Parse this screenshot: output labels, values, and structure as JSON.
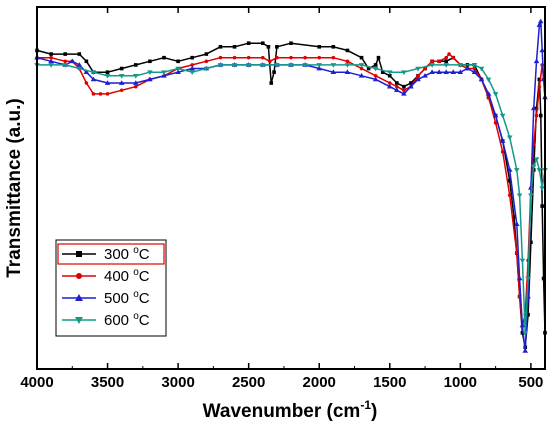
{
  "chart_data": {
    "type": "line",
    "title": "",
    "xlabel_main": "Wavenumber (cm",
    "xlabel_sup": "-1",
    "xlabel_end": ")",
    "ylabel": "Transmittance (a.u.)",
    "xlim": [
      4000,
      400
    ],
    "ylim": [
      0,
      100
    ],
    "x_ticks": [
      4000,
      3500,
      3000,
      2500,
      2000,
      1500,
      1000,
      500
    ],
    "show_y_ticks": false,
    "grid": false,
    "legend_position": "bottom-left",
    "degree_symbol": "o",
    "series": [
      {
        "name": "300",
        "unit": "C",
        "color": "#000000",
        "marker": "square",
        "points": [
          [
            4000,
            88
          ],
          [
            3900,
            87
          ],
          [
            3800,
            87
          ],
          [
            3700,
            87
          ],
          [
            3650,
            85
          ],
          [
            3600,
            82
          ],
          [
            3500,
            82
          ],
          [
            3400,
            83
          ],
          [
            3300,
            84
          ],
          [
            3200,
            85
          ],
          [
            3100,
            86
          ],
          [
            3000,
            85
          ],
          [
            2900,
            86
          ],
          [
            2800,
            87
          ],
          [
            2700,
            89
          ],
          [
            2600,
            89
          ],
          [
            2500,
            90
          ],
          [
            2400,
            90
          ],
          [
            2360,
            89
          ],
          [
            2340,
            79
          ],
          [
            2320,
            82
          ],
          [
            2300,
            89
          ],
          [
            2200,
            90
          ],
          [
            2000,
            89
          ],
          [
            1900,
            89
          ],
          [
            1800,
            88
          ],
          [
            1700,
            86
          ],
          [
            1650,
            83
          ],
          [
            1600,
            84
          ],
          [
            1580,
            86
          ],
          [
            1550,
            82
          ],
          [
            1500,
            81
          ],
          [
            1450,
            79
          ],
          [
            1400,
            78
          ],
          [
            1350,
            79
          ],
          [
            1300,
            81
          ],
          [
            1250,
            83
          ],
          [
            1200,
            85
          ],
          [
            1150,
            85
          ],
          [
            1100,
            85
          ],
          [
            1050,
            86
          ],
          [
            1000,
            84
          ],
          [
            950,
            84
          ],
          [
            900,
            84
          ],
          [
            850,
            80
          ],
          [
            800,
            75
          ],
          [
            750,
            70
          ],
          [
            700,
            63
          ],
          [
            650,
            52
          ],
          [
            620,
            42
          ],
          [
            600,
            32
          ],
          [
            580,
            20
          ],
          [
            560,
            10
          ],
          [
            540,
            6
          ],
          [
            520,
            15
          ],
          [
            500,
            35
          ],
          [
            480,
            55
          ],
          [
            460,
            72
          ],
          [
            440,
            80
          ],
          [
            430,
            70
          ],
          [
            420,
            45
          ],
          [
            410,
            25
          ],
          [
            400,
            10
          ]
        ]
      },
      {
        "name": "400",
        "unit": "C",
        "color": "#e00000",
        "marker": "circle",
        "points": [
          [
            4000,
            86
          ],
          [
            3900,
            86
          ],
          [
            3800,
            85
          ],
          [
            3750,
            85
          ],
          [
            3700,
            83
          ],
          [
            3650,
            79
          ],
          [
            3600,
            76
          ],
          [
            3550,
            76
          ],
          [
            3500,
            76
          ],
          [
            3400,
            77
          ],
          [
            3300,
            78
          ],
          [
            3200,
            80
          ],
          [
            3100,
            81
          ],
          [
            3000,
            83
          ],
          [
            2900,
            84
          ],
          [
            2800,
            85
          ],
          [
            2700,
            86
          ],
          [
            2600,
            86
          ],
          [
            2500,
            86
          ],
          [
            2400,
            86
          ],
          [
            2350,
            85
          ],
          [
            2300,
            86
          ],
          [
            2200,
            86
          ],
          [
            2100,
            86
          ],
          [
            2000,
            86
          ],
          [
            1900,
            86
          ],
          [
            1800,
            85
          ],
          [
            1700,
            83
          ],
          [
            1600,
            81
          ],
          [
            1500,
            79
          ],
          [
            1450,
            78
          ],
          [
            1400,
            77
          ],
          [
            1350,
            78
          ],
          [
            1300,
            81
          ],
          [
            1250,
            83
          ],
          [
            1200,
            85
          ],
          [
            1150,
            85
          ],
          [
            1100,
            86
          ],
          [
            1080,
            87
          ],
          [
            1050,
            86
          ],
          [
            1000,
            84
          ],
          [
            950,
            83
          ],
          [
            900,
            83
          ],
          [
            850,
            80
          ],
          [
            800,
            75
          ],
          [
            750,
            68
          ],
          [
            700,
            60
          ],
          [
            650,
            48
          ],
          [
            600,
            32
          ],
          [
            580,
            20
          ],
          [
            560,
            12
          ],
          [
            540,
            15
          ],
          [
            520,
            30
          ],
          [
            500,
            50
          ],
          [
            480,
            62
          ],
          [
            460,
            70
          ],
          [
            440,
            78
          ],
          [
            420,
            84
          ],
          [
            410,
            80
          ],
          [
            400,
            75
          ]
        ]
      },
      {
        "name": "500",
        "unit": "C",
        "color": "#1f1fd0",
        "marker": "triangle-up",
        "points": [
          [
            4000,
            86
          ],
          [
            3900,
            85
          ],
          [
            3800,
            84
          ],
          [
            3750,
            85
          ],
          [
            3700,
            84
          ],
          [
            3650,
            82
          ],
          [
            3600,
            80
          ],
          [
            3500,
            79
          ],
          [
            3400,
            79
          ],
          [
            3300,
            79
          ],
          [
            3200,
            80
          ],
          [
            3100,
            81
          ],
          [
            3000,
            82
          ],
          [
            2900,
            83
          ],
          [
            2800,
            83
          ],
          [
            2700,
            84
          ],
          [
            2600,
            84
          ],
          [
            2500,
            84
          ],
          [
            2400,
            84
          ],
          [
            2300,
            84
          ],
          [
            2200,
            84
          ],
          [
            2100,
            84
          ],
          [
            2000,
            83
          ],
          [
            1900,
            82
          ],
          [
            1800,
            82
          ],
          [
            1700,
            81
          ],
          [
            1600,
            80
          ],
          [
            1500,
            78
          ],
          [
            1450,
            77
          ],
          [
            1400,
            76
          ],
          [
            1350,
            78
          ],
          [
            1300,
            80
          ],
          [
            1250,
            81
          ],
          [
            1200,
            82
          ],
          [
            1150,
            82
          ],
          [
            1100,
            82
          ],
          [
            1050,
            82
          ],
          [
            1000,
            82
          ],
          [
            950,
            83
          ],
          [
            900,
            82
          ],
          [
            850,
            80
          ],
          [
            800,
            76
          ],
          [
            750,
            70
          ],
          [
            700,
            63
          ],
          [
            650,
            55
          ],
          [
            600,
            40
          ],
          [
            580,
            25
          ],
          [
            560,
            12
          ],
          [
            540,
            5
          ],
          [
            520,
            20
          ],
          [
            500,
            50
          ],
          [
            480,
            72
          ],
          [
            460,
            85
          ],
          [
            440,
            95
          ],
          [
            430,
            96
          ],
          [
            420,
            88
          ],
          [
            410,
            80
          ],
          [
            400,
            75
          ]
        ]
      },
      {
        "name": "600",
        "unit": "C",
        "color": "#139a8c",
        "marker": "triangle-down",
        "points": [
          [
            4000,
            84
          ],
          [
            3900,
            84
          ],
          [
            3800,
            84
          ],
          [
            3700,
            83
          ],
          [
            3600,
            82
          ],
          [
            3500,
            81
          ],
          [
            3400,
            81
          ],
          [
            3300,
            81
          ],
          [
            3200,
            82
          ],
          [
            3100,
            82
          ],
          [
            3000,
            83
          ],
          [
            2900,
            82
          ],
          [
            2800,
            83
          ],
          [
            2700,
            84
          ],
          [
            2600,
            84
          ],
          [
            2500,
            84
          ],
          [
            2400,
            84
          ],
          [
            2300,
            84
          ],
          [
            2200,
            84
          ],
          [
            2100,
            84
          ],
          [
            2000,
            84
          ],
          [
            1900,
            84
          ],
          [
            1800,
            84
          ],
          [
            1700,
            84
          ],
          [
            1600,
            83
          ],
          [
            1500,
            82
          ],
          [
            1400,
            82
          ],
          [
            1300,
            83
          ],
          [
            1200,
            84
          ],
          [
            1100,
            84
          ],
          [
            1000,
            84
          ],
          [
            900,
            84
          ],
          [
            850,
            83
          ],
          [
            800,
            80
          ],
          [
            750,
            76
          ],
          [
            700,
            70
          ],
          [
            650,
            64
          ],
          [
            600,
            55
          ],
          [
            580,
            48
          ],
          [
            560,
            30
          ],
          [
            540,
            10
          ],
          [
            520,
            25
          ],
          [
            500,
            48
          ],
          [
            480,
            56
          ],
          [
            460,
            58
          ],
          [
            440,
            55
          ],
          [
            420,
            50
          ],
          [
            400,
            55
          ]
        ]
      }
    ]
  }
}
